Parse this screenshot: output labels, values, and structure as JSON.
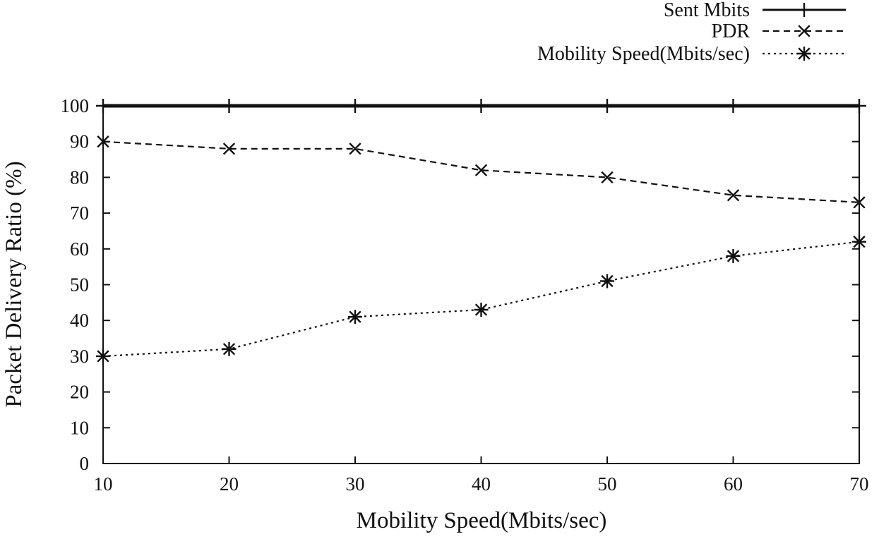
{
  "chart_data": {
    "type": "line",
    "title": "",
    "xlabel": "Mobility Speed(Mbits/sec)",
    "ylabel": "Packet Delivery Ratio (%)",
    "xlim": [
      10,
      70
    ],
    "ylim": [
      0,
      100
    ],
    "x_ticks": [
      10,
      20,
      30,
      40,
      50,
      60,
      70
    ],
    "y_ticks": [
      0,
      10,
      20,
      30,
      40,
      50,
      60,
      70,
      80,
      90,
      100
    ],
    "grid": false,
    "legend_position": "top-right",
    "x": [
      10,
      20,
      30,
      40,
      50,
      60,
      70
    ],
    "series": [
      {
        "name": "Sent Mbits",
        "values": [
          100,
          100,
          100,
          100,
          100,
          100,
          100
        ],
        "style": "solid",
        "marker": "plus"
      },
      {
        "name": "PDR",
        "values": [
          90,
          88,
          88,
          82,
          80,
          75,
          73
        ],
        "style": "dashed",
        "marker": "cross"
      },
      {
        "name": "Mobility Speed(Mbits/sec)",
        "values": [
          30,
          32,
          41,
          43,
          51,
          58,
          62
        ],
        "style": "dotted",
        "marker": "star"
      }
    ],
    "colors": {
      "line": "#111111",
      "background": "#ffffff"
    }
  }
}
